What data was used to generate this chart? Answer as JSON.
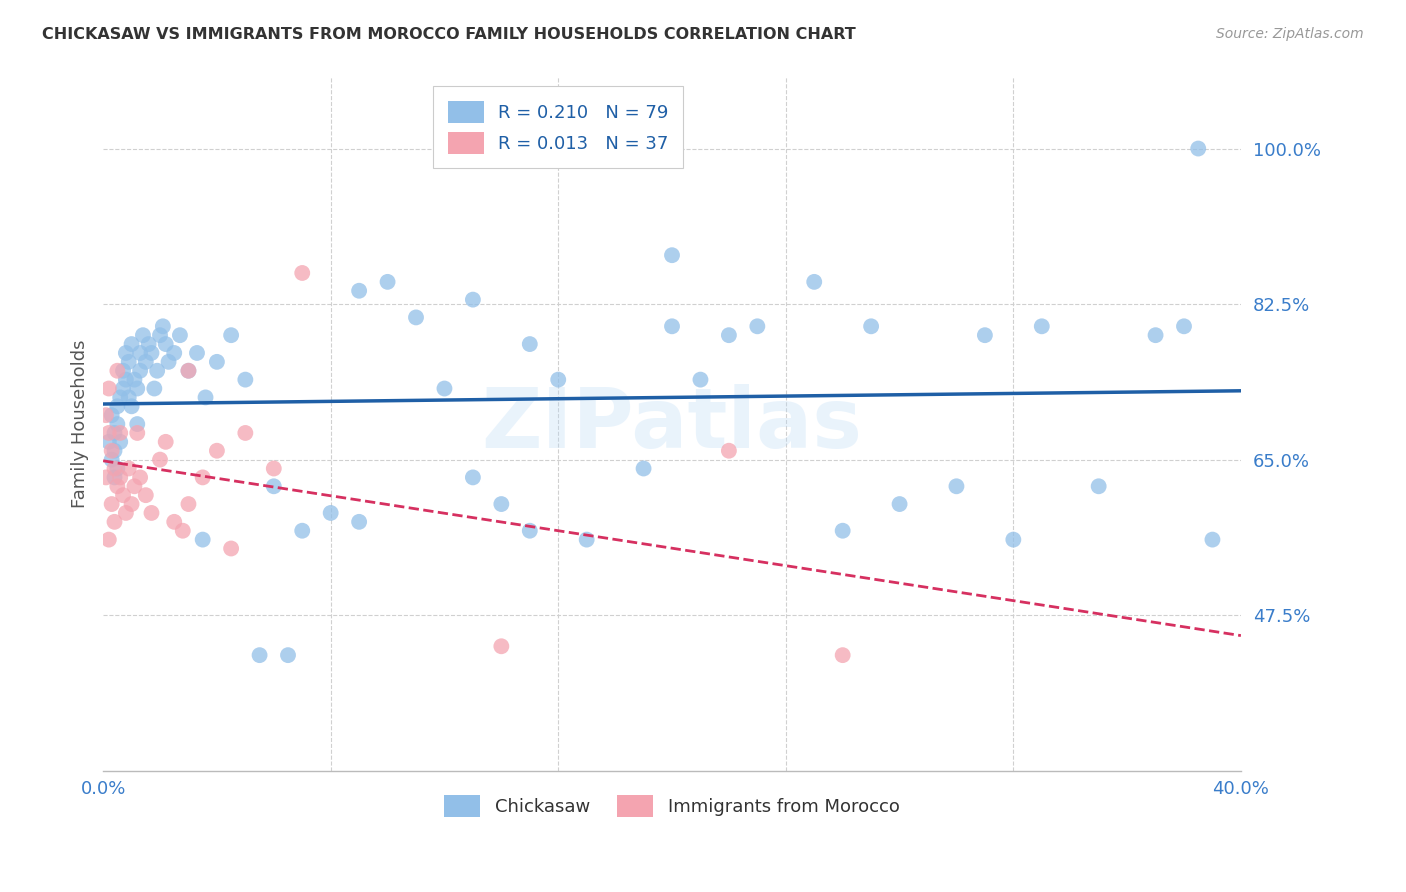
{
  "title": "CHICKASAW VS IMMIGRANTS FROM MOROCCO FAMILY HOUSEHOLDS CORRELATION CHART",
  "source": "Source: ZipAtlas.com",
  "ylabel": "Family Households",
  "legend_blue_r": "R = 0.210",
  "legend_blue_n": "N = 79",
  "legend_pink_r": "R = 0.013",
  "legend_pink_n": "N = 37",
  "legend_label_blue": "Chickasaw",
  "legend_label_pink": "Immigrants from Morocco",
  "blue_color": "#92bfe8",
  "pink_color": "#f4a4b0",
  "blue_line_color": "#1f5fa6",
  "pink_line_color": "#d63060",
  "watermark": "ZIPatlas",
  "axis_label_color": "#3a7dca",
  "ytick_vals": [
    0.475,
    0.65,
    0.825,
    1.0
  ],
  "ytick_labels": [
    "47.5%",
    "65.0%",
    "82.5%",
    "100.0%"
  ],
  "xmin": 0.0,
  "xmax": 0.4,
  "ymin": 0.3,
  "ymax": 1.08,
  "blue_x": [
    0.002,
    0.003,
    0.003,
    0.004,
    0.004,
    0.004,
    0.005,
    0.005,
    0.005,
    0.006,
    0.006,
    0.007,
    0.007,
    0.008,
    0.008,
    0.009,
    0.009,
    0.01,
    0.01,
    0.011,
    0.012,
    0.012,
    0.013,
    0.013,
    0.014,
    0.015,
    0.016,
    0.017,
    0.018,
    0.019,
    0.02,
    0.021,
    0.022,
    0.023,
    0.025,
    0.027,
    0.03,
    0.033,
    0.036,
    0.04,
    0.045,
    0.05,
    0.06,
    0.07,
    0.08,
    0.09,
    0.1,
    0.11,
    0.12,
    0.13,
    0.14,
    0.15,
    0.16,
    0.17,
    0.19,
    0.2,
    0.21,
    0.22,
    0.23,
    0.25,
    0.27,
    0.28,
    0.3,
    0.31,
    0.33,
    0.35,
    0.37,
    0.38,
    0.385,
    0.39,
    0.15,
    0.09,
    0.035,
    0.055,
    0.065,
    0.13,
    0.2,
    0.26,
    0.32
  ],
  "blue_y": [
    0.67,
    0.7,
    0.65,
    0.68,
    0.66,
    0.63,
    0.71,
    0.69,
    0.64,
    0.72,
    0.67,
    0.75,
    0.73,
    0.77,
    0.74,
    0.76,
    0.72,
    0.78,
    0.71,
    0.74,
    0.73,
    0.69,
    0.77,
    0.75,
    0.79,
    0.76,
    0.78,
    0.77,
    0.73,
    0.75,
    0.79,
    0.8,
    0.78,
    0.76,
    0.77,
    0.79,
    0.75,
    0.77,
    0.72,
    0.76,
    0.79,
    0.74,
    0.62,
    0.57,
    0.59,
    0.84,
    0.85,
    0.81,
    0.73,
    0.63,
    0.6,
    0.78,
    0.74,
    0.56,
    0.64,
    0.8,
    0.74,
    0.79,
    0.8,
    0.85,
    0.8,
    0.6,
    0.62,
    0.79,
    0.8,
    0.62,
    0.79,
    0.8,
    1.0,
    0.56,
    0.57,
    0.58,
    0.56,
    0.43,
    0.43,
    0.83,
    0.88,
    0.57,
    0.56
  ],
  "pink_x": [
    0.001,
    0.001,
    0.002,
    0.002,
    0.003,
    0.003,
    0.004,
    0.004,
    0.005,
    0.005,
    0.006,
    0.006,
    0.007,
    0.008,
    0.009,
    0.01,
    0.011,
    0.012,
    0.013,
    0.015,
    0.017,
    0.02,
    0.022,
    0.025,
    0.028,
    0.03,
    0.035,
    0.04,
    0.045,
    0.05,
    0.06,
    0.07,
    0.002,
    0.22,
    0.26,
    0.14,
    0.03
  ],
  "pink_y": [
    0.7,
    0.63,
    0.73,
    0.68,
    0.66,
    0.6,
    0.64,
    0.58,
    0.75,
    0.62,
    0.68,
    0.63,
    0.61,
    0.59,
    0.64,
    0.6,
    0.62,
    0.68,
    0.63,
    0.61,
    0.59,
    0.65,
    0.67,
    0.58,
    0.57,
    0.6,
    0.63,
    0.66,
    0.55,
    0.68,
    0.64,
    0.86,
    0.56,
    0.66,
    0.43,
    0.44,
    0.75
  ]
}
